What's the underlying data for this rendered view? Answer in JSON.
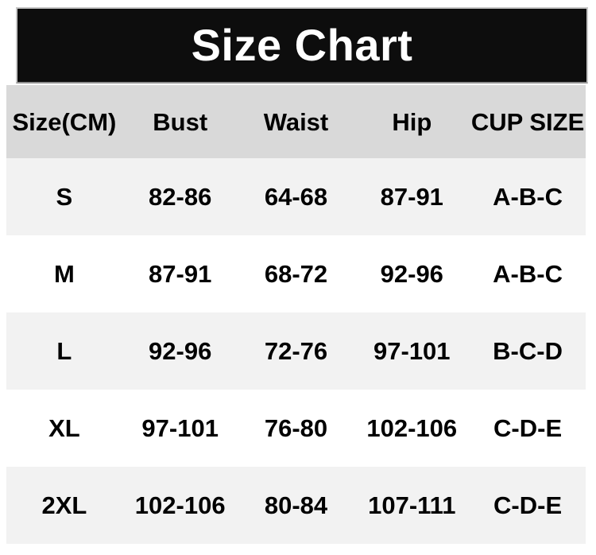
{
  "title": "Size Chart",
  "colors": {
    "title_bar_bg": "#0d0d0d",
    "title_text": "#ffffff",
    "header_row_bg": "#d9d9d9",
    "row_shade_bg": "#f2f2f2",
    "row_plain_bg": "#ffffff",
    "body_text": "#000000"
  },
  "chart_data": {
    "type": "table",
    "title": "Size Chart",
    "columns": [
      "Size(CM)",
      "Bust",
      "Waist",
      "Hip",
      "CUP SIZE"
    ],
    "rows": [
      [
        "S",
        "82-86",
        "64-68",
        "87-91",
        "A-B-C"
      ],
      [
        "M",
        "87-91",
        "68-72",
        "92-96",
        "A-B-C"
      ],
      [
        "L",
        "92-96",
        "72-76",
        "97-101",
        "B-C-D"
      ],
      [
        "XL",
        "97-101",
        "76-80",
        "102-106",
        "C-D-E"
      ],
      [
        "2XL",
        "102-106",
        "80-84",
        "107-111",
        "C-D-E"
      ]
    ],
    "layout": {
      "units": "CM",
      "row_striping": "alternating light-gray / white starting with light-gray",
      "text_alignment": "center"
    }
  }
}
